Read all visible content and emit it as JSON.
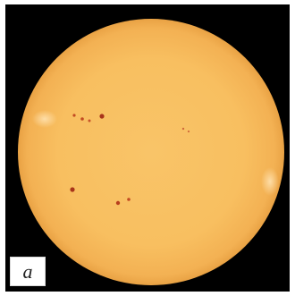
{
  "figure": {
    "panel_label": "a",
    "background_color": "#000000",
    "disk_color": "#f7bd5c",
    "sunspot_color": "#b23a1a"
  }
}
